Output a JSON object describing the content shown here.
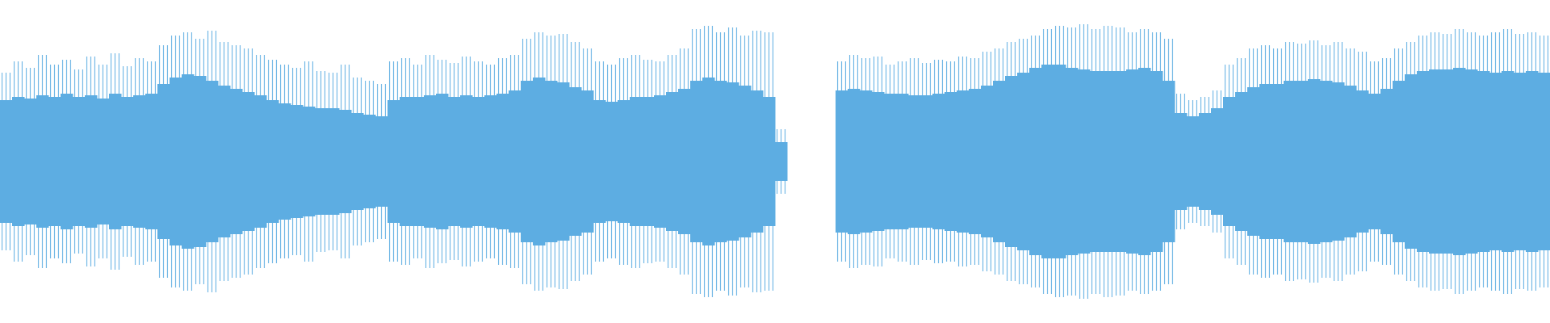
{
  "chart_data": {
    "type": "waveform",
    "color": "#5dade2",
    "ylim": [
      -1,
      1
    ],
    "values": [
      0.55,
      0.62,
      0.58,
      0.66,
      0.6,
      0.63,
      0.57,
      0.65,
      0.6,
      0.67,
      0.59,
      0.64,
      0.62,
      0.72,
      0.78,
      0.8,
      0.76,
      0.81,
      0.74,
      0.72,
      0.7,
      0.66,
      0.63,
      0.6,
      0.58,
      0.62,
      0.56,
      0.55,
      0.6,
      0.52,
      0.5,
      0.48,
      0.62,
      0.64,
      0.6,
      0.66,
      0.63,
      0.61,
      0.65,
      0.62,
      0.6,
      0.64,
      0.66,
      0.76,
      0.8,
      0.78,
      0.79,
      0.74,
      0.7,
      0.62,
      0.6,
      0.64,
      0.66,
      0.63,
      0.62,
      0.66,
      0.7,
      0.82,
      0.84,
      0.8,
      0.83,
      0.78,
      0.81,
      0.8,
      0.2,
      null,
      null,
      null,
      null,
      0.62,
      0.66,
      0.64,
      0.65,
      0.6,
      0.62,
      0.64,
      0.61,
      0.63,
      0.62,
      0.65,
      0.64,
      0.68,
      0.7,
      0.74,
      0.76,
      0.78,
      0.82,
      0.84,
      0.83,
      0.85,
      0.82,
      0.84,
      0.83,
      0.8,
      0.82,
      0.8,
      0.76,
      0.42,
      0.38,
      0.4,
      0.44,
      0.6,
      0.64,
      0.7,
      0.72,
      0.7,
      0.74,
      0.73,
      0.75,
      0.72,
      0.74,
      0.7,
      0.68,
      0.62,
      0.64,
      0.7,
      0.74,
      0.78,
      0.8,
      0.79,
      0.82,
      0.8,
      0.78,
      0.8,
      0.82,
      0.79,
      0.8,
      0.78
    ],
    "core_values": [
      0.38,
      0.4,
      0.39,
      0.41,
      0.4,
      0.42,
      0.4,
      0.41,
      0.39,
      0.42,
      0.4,
      0.41,
      0.42,
      0.48,
      0.52,
      0.54,
      0.53,
      0.5,
      0.47,
      0.45,
      0.43,
      0.41,
      0.38,
      0.36,
      0.35,
      0.34,
      0.33,
      0.33,
      0.32,
      0.3,
      0.29,
      0.28,
      0.38,
      0.4,
      0.4,
      0.41,
      0.42,
      0.4,
      0.41,
      0.4,
      0.41,
      0.42,
      0.44,
      0.5,
      0.52,
      0.5,
      0.49,
      0.46,
      0.44,
      0.38,
      0.37,
      0.38,
      0.4,
      0.4,
      0.41,
      0.43,
      0.45,
      0.5,
      0.52,
      0.5,
      0.49,
      0.47,
      0.44,
      0.4,
      0.12,
      null,
      null,
      null,
      null,
      0.44,
      0.45,
      0.44,
      0.43,
      0.42,
      0.42,
      0.41,
      0.41,
      0.42,
      0.43,
      0.44,
      0.45,
      0.47,
      0.5,
      0.53,
      0.55,
      0.58,
      0.6,
      0.6,
      0.58,
      0.57,
      0.56,
      0.56,
      0.56,
      0.57,
      0.58,
      0.56,
      0.5,
      0.3,
      0.28,
      0.3,
      0.33,
      0.4,
      0.43,
      0.46,
      0.48,
      0.48,
      0.5,
      0.5,
      0.51,
      0.5,
      0.49,
      0.47,
      0.44,
      0.42,
      0.45,
      0.5,
      0.54,
      0.56,
      0.57,
      0.57,
      0.58,
      0.57,
      0.56,
      0.55,
      0.56,
      0.55,
      0.56,
      0.55
    ]
  }
}
